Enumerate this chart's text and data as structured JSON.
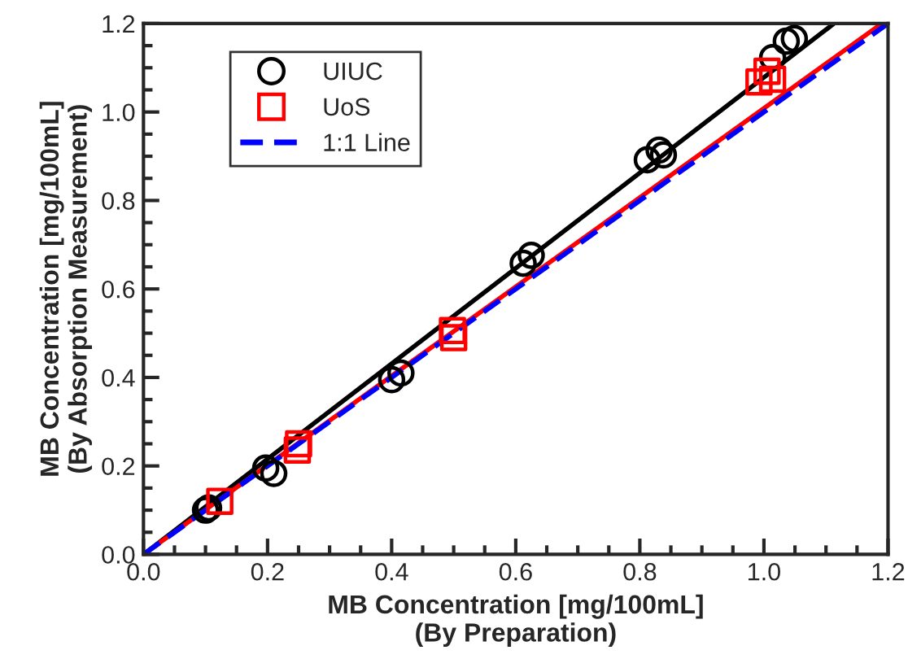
{
  "chart_data": {
    "type": "scatter",
    "xlabel": "MB Concentration [mg/100mL]\n(By Preparation)",
    "ylabel": "MB Concentration [mg/100mL]\n(By Absorption Measurement)",
    "xlim": [
      0.0,
      1.2
    ],
    "ylim": [
      0.0,
      1.2
    ],
    "xticks": [
      {
        "value": 0,
        "label": "0.0"
      },
      0.2,
      0.4,
      0.6,
      0.8,
      {
        "value": 1,
        "label": "1.0"
      },
      1.2
    ],
    "yticks": [
      {
        "value": 0,
        "label": "0.0"
      },
      0.2,
      0.4,
      0.6,
      0.8,
      {
        "value": 1,
        "label": "1.0"
      },
      1.2
    ],
    "legend": "top left",
    "grid": false,
    "series": [
      {
        "type": "line",
        "color": "#000000",
        "x": [
          0.0,
          1.113
        ],
        "values": [
          0.0,
          1.2
        ],
        "line_style": "solid",
        "marker": "none"
      },
      {
        "type": "line",
        "color": "#ff0000",
        "x": [
          0.0,
          1.19
        ],
        "values": [
          0.0,
          1.2
        ],
        "line_style": "solid",
        "marker": "none"
      },
      {
        "name": "UIUC",
        "color": "#000000",
        "marker": "circle",
        "x": [
          0.1,
          0.105,
          0.197,
          0.21,
          0.4,
          0.415,
          0.612,
          0.625,
          0.812,
          0.831,
          0.838,
          1.014,
          1.036,
          1.049
        ],
        "values": [
          0.1,
          0.105,
          0.195,
          0.183,
          0.395,
          0.41,
          0.658,
          0.676,
          0.892,
          0.914,
          0.903,
          1.123,
          1.16,
          1.166
        ]
      },
      {
        "name": "UoS",
        "color": "#ff0000",
        "marker": "square",
        "x": [
          0.123,
          0.248,
          0.25,
          0.498,
          0.5,
          0.992,
          1.005,
          1.014
        ],
        "values": [
          0.12,
          0.236,
          0.25,
          0.506,
          0.49,
          1.068,
          1.092,
          1.074
        ]
      },
      {
        "type": "line",
        "name": "1:1 Line",
        "color": "#0000ff",
        "x": [
          0.0,
          1.2
        ],
        "values": [
          0.0,
          1.2
        ],
        "line_style": "dashed",
        "marker": "none"
      }
    ]
  }
}
